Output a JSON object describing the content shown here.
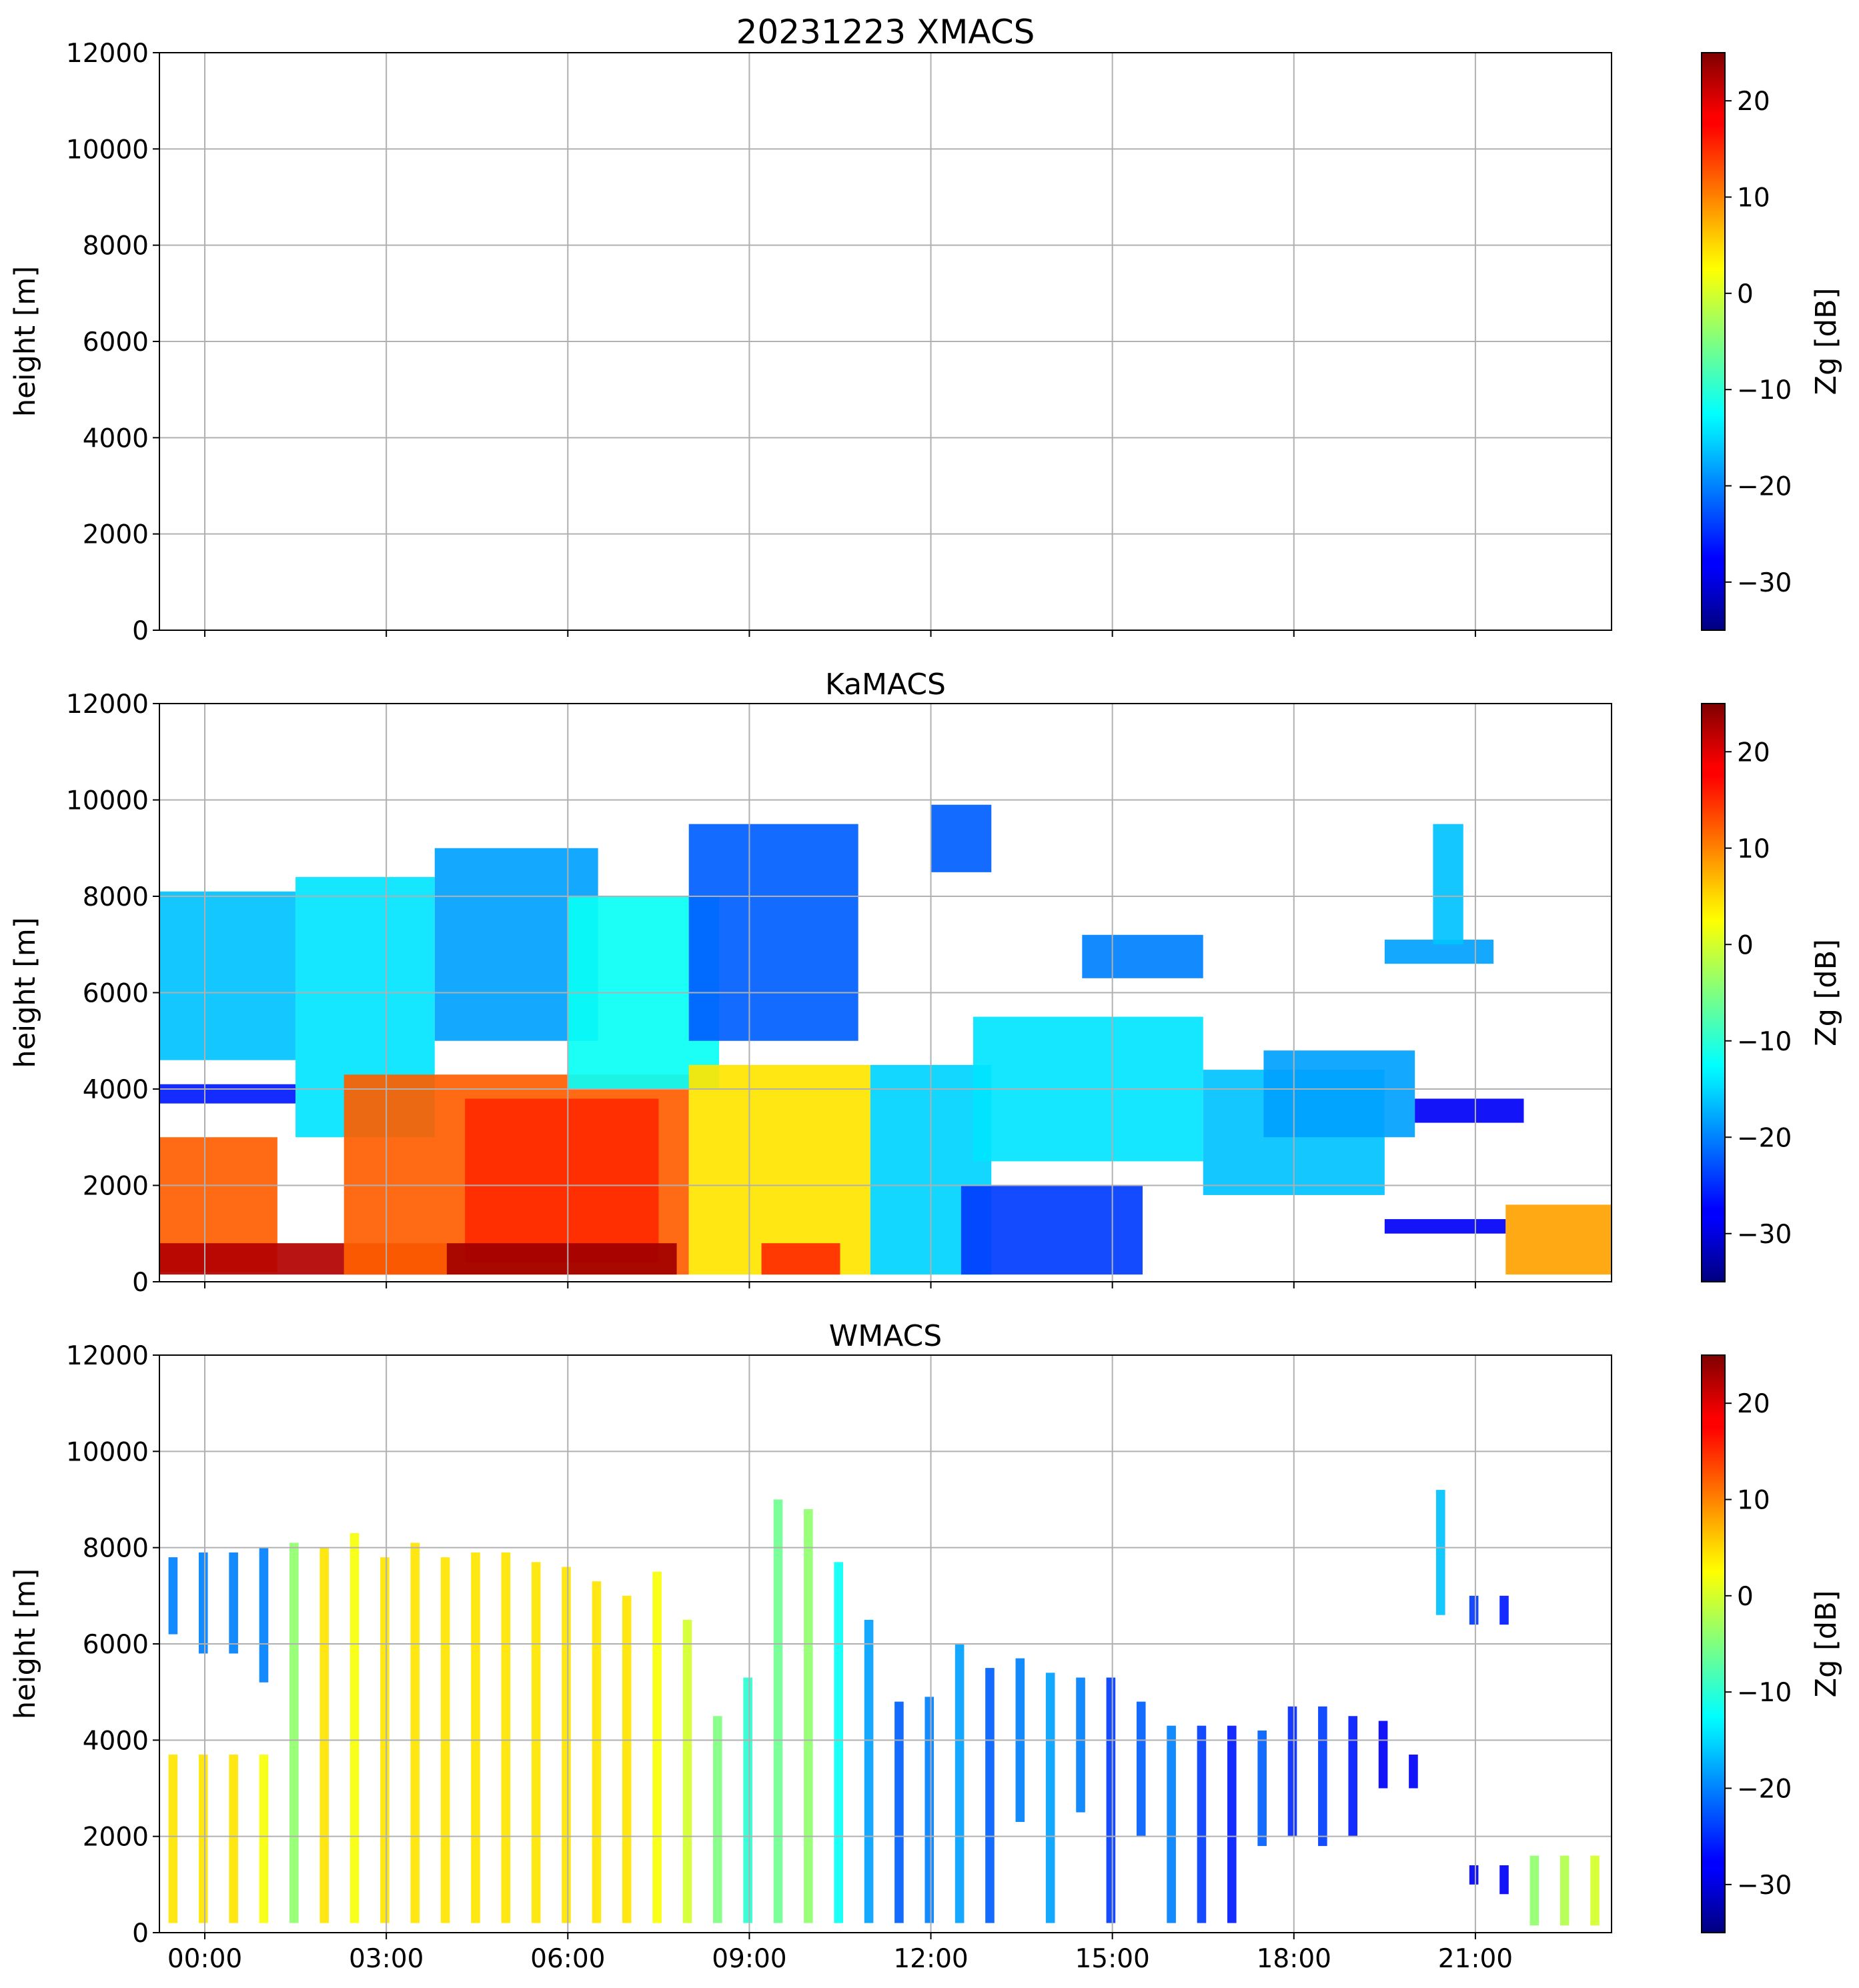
{
  "chart_data": [
    {
      "type": "heatmap",
      "title": "20231223 XMACS",
      "xlabel": "",
      "ylabel": "height [m]",
      "ylim": [
        0,
        12000
      ],
      "xlim_hours": [
        -0.75,
        23.25
      ],
      "y_ticks": [
        0,
        2000,
        4000,
        6000,
        8000,
        10000,
        12000
      ],
      "x_tick_hours": [
        0,
        3,
        6,
        9,
        12,
        15,
        18,
        21
      ],
      "x_tick_labels": [
        "00:00",
        "03:00",
        "06:00",
        "09:00",
        "12:00",
        "15:00",
        "18:00",
        "21:00"
      ],
      "show_x_tick_labels": false,
      "grid": true,
      "colorbar": {
        "label": "Zg [dB]",
        "range": [
          -35,
          25
        ],
        "ticks": [
          -30,
          -20,
          -10,
          0,
          10,
          20
        ],
        "colormap": "jet"
      },
      "echoes": []
    },
    {
      "type": "heatmap",
      "title": "KaMACS",
      "xlabel": "",
      "ylabel": "height [m]",
      "ylim": [
        0,
        12000
      ],
      "xlim_hours": [
        -0.75,
        23.25
      ],
      "y_ticks": [
        0,
        2000,
        4000,
        6000,
        8000,
        10000,
        12000
      ],
      "x_tick_hours": [
        0,
        3,
        6,
        9,
        12,
        15,
        18,
        21
      ],
      "x_tick_labels": [
        "00:00",
        "03:00",
        "06:00",
        "09:00",
        "12:00",
        "15:00",
        "18:00",
        "21:00"
      ],
      "show_x_tick_labels": false,
      "grid": true,
      "colorbar": {
        "label": "Zg [dB]",
        "range": [
          -35,
          25
        ],
        "ticks": [
          -30,
          -20,
          -10,
          0,
          10,
          20
        ],
        "colormap": "jet"
      },
      "echoes": [
        {
          "t0": -0.75,
          "t1": 1.5,
          "h0": 4600,
          "h1": 8100,
          "z": -16
        },
        {
          "t0": -0.75,
          "t1": 1.5,
          "h0": 3700,
          "h1": 4100,
          "z": -26
        },
        {
          "t0": -0.75,
          "t1": 1.2,
          "h0": 200,
          "h1": 3000,
          "z": 12
        },
        {
          "t0": -0.75,
          "t1": 4.0,
          "h0": 150,
          "h1": 800,
          "z": 22
        },
        {
          "t0": 1.5,
          "t1": 3.8,
          "h0": 3000,
          "h1": 8400,
          "z": -14
        },
        {
          "t0": 3.8,
          "t1": 6.5,
          "h0": 5000,
          "h1": 9000,
          "z": -18
        },
        {
          "t0": 2.3,
          "t1": 8.0,
          "h0": 150,
          "h1": 4300,
          "z": 12
        },
        {
          "t0": 4.3,
          "t1": 7.5,
          "h0": 400,
          "h1": 3800,
          "z": 15
        },
        {
          "t0": 4.0,
          "t1": 7.8,
          "h0": 150,
          "h1": 800,
          "z": 23
        },
        {
          "t0": 6.0,
          "t1": 8.5,
          "h0": 4000,
          "h1": 8000,
          "z": -12
        },
        {
          "t0": 8.0,
          "t1": 10.8,
          "h0": 5000,
          "h1": 9500,
          "z": -22
        },
        {
          "t0": 8.0,
          "t1": 11.0,
          "h0": 150,
          "h1": 4500,
          "z": 4
        },
        {
          "t0": 9.2,
          "t1": 10.5,
          "h0": 150,
          "h1": 800,
          "z": 15
        },
        {
          "t0": 11.0,
          "t1": 13.0,
          "h0": 150,
          "h1": 4500,
          "z": -15
        },
        {
          "t0": 12.0,
          "t1": 13.0,
          "h0": 8500,
          "h1": 9900,
          "z": -22
        },
        {
          "t0": 12.7,
          "t1": 16.5,
          "h0": 2500,
          "h1": 5500,
          "z": -14
        },
        {
          "t0": 14.5,
          "t1": 16.5,
          "h0": 6300,
          "h1": 7200,
          "z": -20
        },
        {
          "t0": 12.5,
          "t1": 15.5,
          "h0": 150,
          "h1": 2000,
          "z": -24
        },
        {
          "t0": 16.5,
          "t1": 19.5,
          "h0": 1800,
          "h1": 4400,
          "z": -16
        },
        {
          "t0": 17.5,
          "t1": 20.0,
          "h0": 3000,
          "h1": 4800,
          "z": -18
        },
        {
          "t0": 20.0,
          "t1": 21.8,
          "h0": 3300,
          "h1": 3800,
          "z": -28
        },
        {
          "t0": 19.5,
          "t1": 21.3,
          "h0": 6600,
          "h1": 7100,
          "z": -18
        },
        {
          "t0": 20.3,
          "t1": 20.8,
          "h0": 7000,
          "h1": 9500,
          "z": -16
        },
        {
          "t0": 19.5,
          "t1": 21.5,
          "h0": 1000,
          "h1": 1300,
          "z": -28
        },
        {
          "t0": 21.5,
          "t1": 23.25,
          "h0": 150,
          "h1": 1600,
          "z": 8
        }
      ]
    },
    {
      "type": "heatmap",
      "title": "WMACS",
      "xlabel": "",
      "ylabel": "height [m]",
      "ylim": [
        0,
        12000
      ],
      "xlim_hours": [
        -0.75,
        23.25
      ],
      "y_ticks": [
        0,
        2000,
        4000,
        6000,
        8000,
        10000,
        12000
      ],
      "x_tick_hours": [
        0,
        3,
        6,
        9,
        12,
        15,
        18,
        21
      ],
      "x_tick_labels": [
        "00:00",
        "03:00",
        "06:00",
        "09:00",
        "12:00",
        "15:00",
        "18:00",
        "21:00"
      ],
      "show_x_tick_labels": true,
      "grid": true,
      "colorbar": {
        "label": "Zg [dB]",
        "range": [
          -35,
          25
        ],
        "ticks": [
          -30,
          -20,
          -10,
          0,
          10,
          20
        ],
        "colormap": "jet"
      },
      "echoes": [
        {
          "t0": -0.6,
          "t1": -0.45,
          "h0": 200,
          "h1": 3700,
          "z": 4
        },
        {
          "t0": -0.6,
          "t1": -0.45,
          "h0": 6200,
          "h1": 7800,
          "z": -20
        },
        {
          "t0": -0.1,
          "t1": 0.05,
          "h0": 200,
          "h1": 3700,
          "z": 4
        },
        {
          "t0": -0.1,
          "t1": 0.05,
          "h0": 5800,
          "h1": 7900,
          "z": -20
        },
        {
          "t0": 0.4,
          "t1": 0.55,
          "h0": 200,
          "h1": 3700,
          "z": 4
        },
        {
          "t0": 0.4,
          "t1": 0.55,
          "h0": 5800,
          "h1": 7900,
          "z": -20
        },
        {
          "t0": 0.9,
          "t1": 1.05,
          "h0": 200,
          "h1": 3700,
          "z": 2
        },
        {
          "t0": 0.9,
          "t1": 1.05,
          "h0": 5200,
          "h1": 8000,
          "z": -20
        },
        {
          "t0": 1.4,
          "t1": 1.55,
          "h0": 200,
          "h1": 8100,
          "z": -4
        },
        {
          "t0": 1.9,
          "t1": 2.05,
          "h0": 200,
          "h1": 8000,
          "z": 4
        },
        {
          "t0": 2.4,
          "t1": 2.55,
          "h0": 200,
          "h1": 8300,
          "z": 2
        },
        {
          "t0": 2.9,
          "t1": 3.05,
          "h0": 200,
          "h1": 7800,
          "z": 4
        },
        {
          "t0": 3.4,
          "t1": 3.55,
          "h0": 200,
          "h1": 8100,
          "z": 4
        },
        {
          "t0": 3.9,
          "t1": 4.05,
          "h0": 200,
          "h1": 7800,
          "z": 4
        },
        {
          "t0": 4.4,
          "t1": 4.55,
          "h0": 200,
          "h1": 7900,
          "z": 4
        },
        {
          "t0": 4.9,
          "t1": 5.05,
          "h0": 200,
          "h1": 7900,
          "z": 4
        },
        {
          "t0": 5.4,
          "t1": 5.55,
          "h0": 200,
          "h1": 7700,
          "z": 4
        },
        {
          "t0": 5.9,
          "t1": 6.05,
          "h0": 200,
          "h1": 7600,
          "z": 4
        },
        {
          "t0": 6.4,
          "t1": 6.55,
          "h0": 200,
          "h1": 7300,
          "z": 4
        },
        {
          "t0": 6.9,
          "t1": 7.05,
          "h0": 200,
          "h1": 7000,
          "z": 4
        },
        {
          "t0": 7.4,
          "t1": 7.55,
          "h0": 200,
          "h1": 7500,
          "z": 2
        },
        {
          "t0": 7.9,
          "t1": 8.05,
          "h0": 200,
          "h1": 6500,
          "z": 0
        },
        {
          "t0": 8.4,
          "t1": 8.55,
          "h0": 200,
          "h1": 4500,
          "z": -5
        },
        {
          "t0": 8.9,
          "t1": 9.05,
          "h0": 200,
          "h1": 5300,
          "z": -10
        },
        {
          "t0": 9.4,
          "t1": 9.55,
          "h0": 200,
          "h1": 9000,
          "z": -6
        },
        {
          "t0": 9.9,
          "t1": 10.05,
          "h0": 200,
          "h1": 8800,
          "z": -4
        },
        {
          "t0": 10.4,
          "t1": 10.55,
          "h0": 200,
          "h1": 7700,
          "z": -12
        },
        {
          "t0": 10.9,
          "t1": 11.05,
          "h0": 200,
          "h1": 6500,
          "z": -18
        },
        {
          "t0": 11.4,
          "t1": 11.55,
          "h0": 200,
          "h1": 4800,
          "z": -22
        },
        {
          "t0": 11.9,
          "t1": 12.05,
          "h0": 200,
          "h1": 4900,
          "z": -20
        },
        {
          "t0": 12.4,
          "t1": 12.55,
          "h0": 200,
          "h1": 6000,
          "z": -18
        },
        {
          "t0": 12.9,
          "t1": 13.05,
          "h0": 200,
          "h1": 5500,
          "z": -22
        },
        {
          "t0": 13.4,
          "t1": 13.55,
          "h0": 2300,
          "h1": 5700,
          "z": -20
        },
        {
          "t0": 13.9,
          "t1": 14.05,
          "h0": 200,
          "h1": 5400,
          "z": -18
        },
        {
          "t0": 14.4,
          "t1": 14.55,
          "h0": 2500,
          "h1": 5300,
          "z": -20
        },
        {
          "t0": 14.9,
          "t1": 15.05,
          "h0": 200,
          "h1": 5300,
          "z": -24
        },
        {
          "t0": 15.4,
          "t1": 15.55,
          "h0": 2000,
          "h1": 4800,
          "z": -22
        },
        {
          "t0": 15.9,
          "t1": 16.05,
          "h0": 200,
          "h1": 4300,
          "z": -20
        },
        {
          "t0": 16.4,
          "t1": 16.55,
          "h0": 200,
          "h1": 4300,
          "z": -24
        },
        {
          "t0": 16.9,
          "t1": 17.05,
          "h0": 200,
          "h1": 4300,
          "z": -26
        },
        {
          "t0": 17.4,
          "t1": 17.55,
          "h0": 1800,
          "h1": 4200,
          "z": -22
        },
        {
          "t0": 17.9,
          "t1": 18.05,
          "h0": 2000,
          "h1": 4700,
          "z": -25
        },
        {
          "t0": 18.4,
          "t1": 18.55,
          "h0": 1800,
          "h1": 4700,
          "z": -24
        },
        {
          "t0": 18.9,
          "t1": 19.05,
          "h0": 2000,
          "h1": 4500,
          "z": -26
        },
        {
          "t0": 19.4,
          "t1": 19.55,
          "h0": 3000,
          "h1": 4400,
          "z": -28
        },
        {
          "t0": 19.9,
          "t1": 20.05,
          "h0": 3000,
          "h1": 3700,
          "z": -28
        },
        {
          "t0": 20.35,
          "t1": 20.5,
          "h0": 6600,
          "h1": 9200,
          "z": -16
        },
        {
          "t0": 20.9,
          "t1": 21.05,
          "h0": 6400,
          "h1": 7000,
          "z": -24
        },
        {
          "t0": 21.4,
          "t1": 21.55,
          "h0": 6400,
          "h1": 7000,
          "z": -26
        },
        {
          "t0": 20.9,
          "t1": 21.05,
          "h0": 1000,
          "h1": 1400,
          "z": -28
        },
        {
          "t0": 21.4,
          "t1": 21.55,
          "h0": 800,
          "h1": 1400,
          "z": -28
        },
        {
          "t0": 21.9,
          "t1": 22.05,
          "h0": 150,
          "h1": 1600,
          "z": -4
        },
        {
          "t0": 22.4,
          "t1": 22.55,
          "h0": 150,
          "h1": 1600,
          "z": -2
        },
        {
          "t0": 22.9,
          "t1": 23.05,
          "h0": 150,
          "h1": 1600,
          "z": 0
        }
      ]
    }
  ]
}
